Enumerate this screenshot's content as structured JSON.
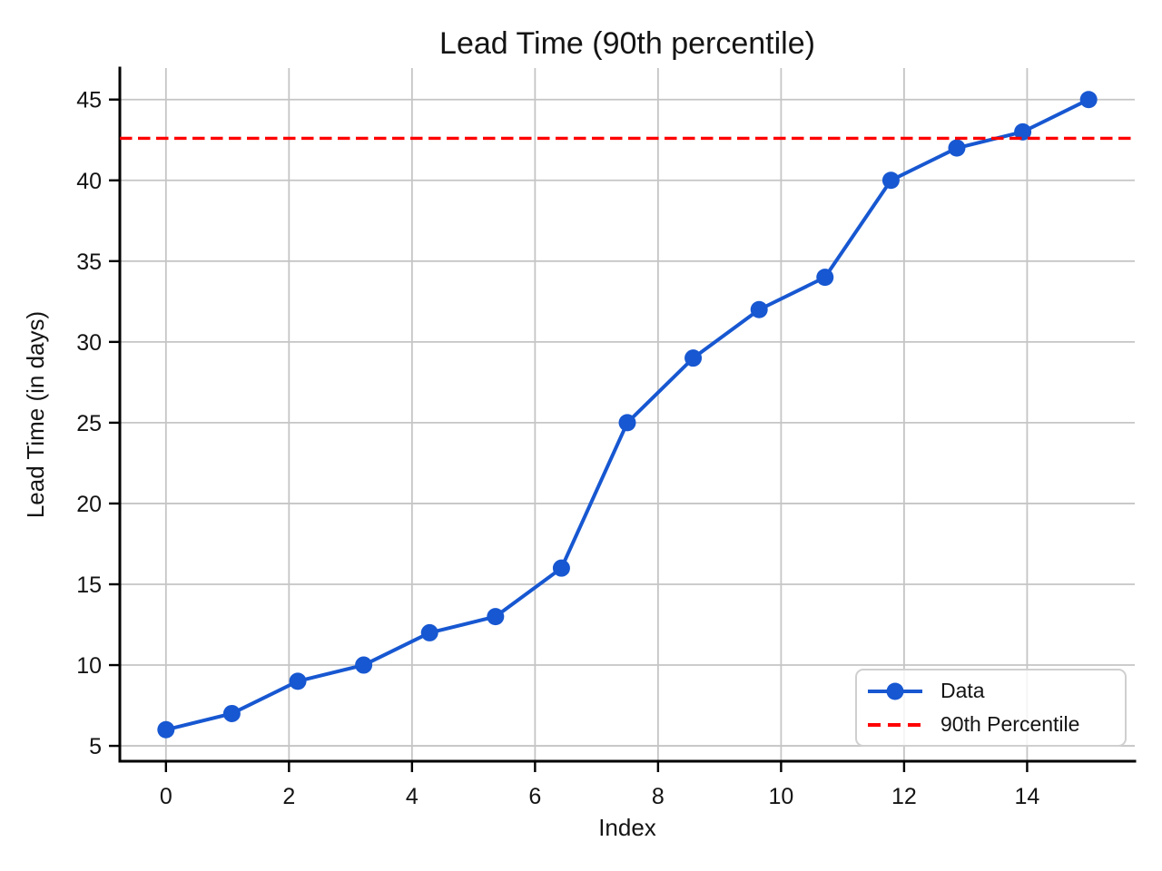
{
  "chart_data": {
    "type": "line",
    "title": "Lead Time (90th percentile)",
    "xlabel": "Index",
    "ylabel": "Lead Time (in days)",
    "x": [
      0,
      1.071,
      2.143,
      3.214,
      4.286,
      5.357,
      6.429,
      7.5,
      8.571,
      9.643,
      10.714,
      11.786,
      12.857,
      13.929,
      15
    ],
    "series": [
      {
        "name": "Data",
        "color": "#1757d1",
        "marker": "circle",
        "values": [
          6,
          7,
          9,
          10,
          12,
          13,
          16,
          25,
          29,
          32,
          34,
          40,
          42,
          43,
          45
        ]
      }
    ],
    "reference_line": {
      "name": "90th Percentile",
      "value": 42.6,
      "color": "#ff0000",
      "style": "dashed"
    },
    "xlim": [
      -0.75,
      15.75
    ],
    "ylim": [
      4.05,
      46.95
    ],
    "xticks": [
      0,
      2,
      4,
      6,
      8,
      10,
      12,
      14
    ],
    "yticks": [
      5,
      10,
      15,
      20,
      25,
      30,
      35,
      40,
      45
    ],
    "grid": true,
    "grid_color": "#c5c5c5",
    "legend_position": "lower right",
    "legend": [
      {
        "label": "Data",
        "swatch": "line-with-circle-marker",
        "color": "#1757d1"
      },
      {
        "label": "90th Percentile",
        "swatch": "dashed-line",
        "color": "#ff0000"
      }
    ]
  }
}
